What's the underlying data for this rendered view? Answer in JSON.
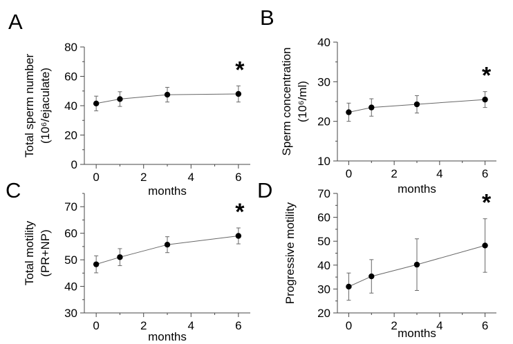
{
  "chart_data": [
    {
      "panel": "A",
      "type": "line",
      "x": [
        0,
        1,
        3,
        6
      ],
      "y": [
        41.5,
        44.5,
        47.5,
        48.0
      ],
      "error": [
        5.0,
        5.0,
        5.0,
        5.5
      ],
      "xticks": [
        0,
        2,
        4,
        6
      ],
      "yticks": [
        0,
        20,
        40,
        60,
        80
      ],
      "xlim": [
        -0.5,
        6.5
      ],
      "ylim": [
        0,
        80
      ],
      "xlabel": "months",
      "ylabel_line1": "Total sperm number",
      "ylabel_line2": "(10⁶/ejaculate)",
      "significance": "*",
      "significance_x": 6
    },
    {
      "panel": "B",
      "type": "line",
      "x": [
        0,
        1,
        3,
        6
      ],
      "y": [
        22.3,
        23.5,
        24.3,
        25.5
      ],
      "error": [
        2.3,
        2.2,
        2.2,
        2.0
      ],
      "xticks": [
        0,
        2,
        4,
        6
      ],
      "yticks": [
        10,
        20,
        30,
        40
      ],
      "xlim": [
        -0.5,
        6.5
      ],
      "ylim": [
        10,
        40
      ],
      "xlabel": "months",
      "ylabel_line1": "Sperm concentration",
      "ylabel_line2": "(10⁶/ml)",
      "significance": "*",
      "significance_x": 6
    },
    {
      "panel": "C",
      "type": "line",
      "x": [
        0,
        1,
        3,
        6
      ],
      "y": [
        48.3,
        51.0,
        55.7,
        59.0
      ],
      "error": [
        3.2,
        3.2,
        3.0,
        3.0
      ],
      "xticks": [
        0,
        2,
        4,
        6
      ],
      "yticks": [
        30,
        40,
        50,
        60,
        70
      ],
      "xlim": [
        -0.5,
        6.5
      ],
      "ylim": [
        30,
        75
      ],
      "xlabel": "months",
      "ylabel_line1": "Total motility",
      "ylabel_line2": "(PR+NP)",
      "significance": "*",
      "significance_x": 6
    },
    {
      "panel": "D",
      "type": "line",
      "x": [
        0,
        1,
        3,
        6
      ],
      "y": [
        31.0,
        35.3,
        40.2,
        48.2
      ],
      "error": [
        5.7,
        7.0,
        10.8,
        11.2
      ],
      "xticks": [
        0,
        2,
        4,
        6
      ],
      "yticks": [
        20,
        30,
        40,
        50,
        60,
        70
      ],
      "xlim": [
        -0.5,
        6.5
      ],
      "ylim": [
        20,
        70
      ],
      "xlabel": "months",
      "ylabel_line1": "Progressive motility",
      "ylabel_line2": "",
      "significance": "*",
      "significance_x": 6
    }
  ]
}
